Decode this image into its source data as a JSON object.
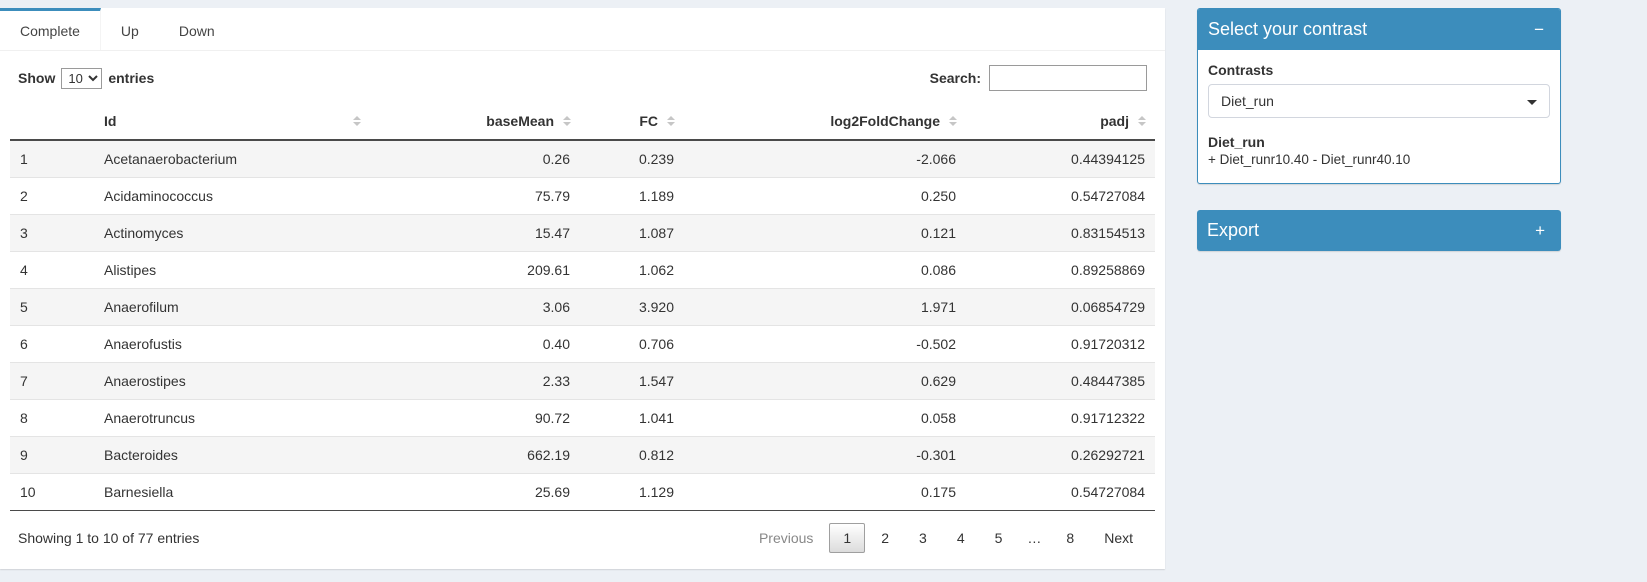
{
  "tabs": [
    {
      "label": "Complete",
      "active": true
    },
    {
      "label": "Up",
      "active": false
    },
    {
      "label": "Down",
      "active": false
    }
  ],
  "controls": {
    "show_label": "Show",
    "entries_select": "10",
    "entries_label": "entries",
    "search_label": "Search:",
    "search_value": ""
  },
  "table": {
    "columns": {
      "index": "",
      "id": "Id",
      "baseMean": "baseMean",
      "fc": "FC",
      "log2fc": "log2FoldChange",
      "padj": "padj"
    },
    "rows": [
      {
        "index": "1",
        "id": "Acetanaerobacterium",
        "baseMean": "0.26",
        "fc": "0.239",
        "log2fc": "-2.066",
        "padj": "0.44394125"
      },
      {
        "index": "2",
        "id": "Acidaminococcus",
        "baseMean": "75.79",
        "fc": "1.189",
        "log2fc": "0.250",
        "padj": "0.54727084"
      },
      {
        "index": "3",
        "id": "Actinomyces",
        "baseMean": "15.47",
        "fc": "1.087",
        "log2fc": "0.121",
        "padj": "0.83154513"
      },
      {
        "index": "4",
        "id": "Alistipes",
        "baseMean": "209.61",
        "fc": "1.062",
        "log2fc": "0.086",
        "padj": "0.89258869"
      },
      {
        "index": "5",
        "id": "Anaerofilum",
        "baseMean": "3.06",
        "fc": "3.920",
        "log2fc": "1.971",
        "padj": "0.06854729"
      },
      {
        "index": "6",
        "id": "Anaerofustis",
        "baseMean": "0.40",
        "fc": "0.706",
        "log2fc": "-0.502",
        "padj": "0.91720312"
      },
      {
        "index": "7",
        "id": "Anaerostipes",
        "baseMean": "2.33",
        "fc": "1.547",
        "log2fc": "0.629",
        "padj": "0.48447385"
      },
      {
        "index": "8",
        "id": "Anaerotruncus",
        "baseMean": "90.72",
        "fc": "1.041",
        "log2fc": "0.058",
        "padj": "0.91712322"
      },
      {
        "index": "9",
        "id": "Bacteroides",
        "baseMean": "662.19",
        "fc": "0.812",
        "log2fc": "-0.301",
        "padj": "0.26292721"
      },
      {
        "index": "10",
        "id": "Barnesiella",
        "baseMean": "25.69",
        "fc": "1.129",
        "log2fc": "0.175",
        "padj": "0.54727084"
      }
    ]
  },
  "footer": {
    "info": "Showing 1 to 10 of 77 entries",
    "pages": [
      {
        "label": "Previous",
        "type": "disabled"
      },
      {
        "label": "1",
        "type": "active"
      },
      {
        "label": "2",
        "type": "page"
      },
      {
        "label": "3",
        "type": "page"
      },
      {
        "label": "4",
        "type": "page"
      },
      {
        "label": "5",
        "type": "page"
      },
      {
        "label": "…",
        "type": "ellipsis"
      },
      {
        "label": "8",
        "type": "page"
      },
      {
        "label": "Next",
        "type": "page"
      }
    ]
  },
  "contrast_box": {
    "title": "Select your contrast",
    "collapse_icon": "−",
    "contrasts_label": "Contrasts",
    "selected_contrast": "Diet_run",
    "detail_title": "Diet_run",
    "detail_formula": "+ Diet_runr10.40 - Diet_runr40.10"
  },
  "export_box": {
    "title": "Export",
    "collapse_icon": "+"
  },
  "colors": {
    "primary": "#3c8dbc"
  }
}
